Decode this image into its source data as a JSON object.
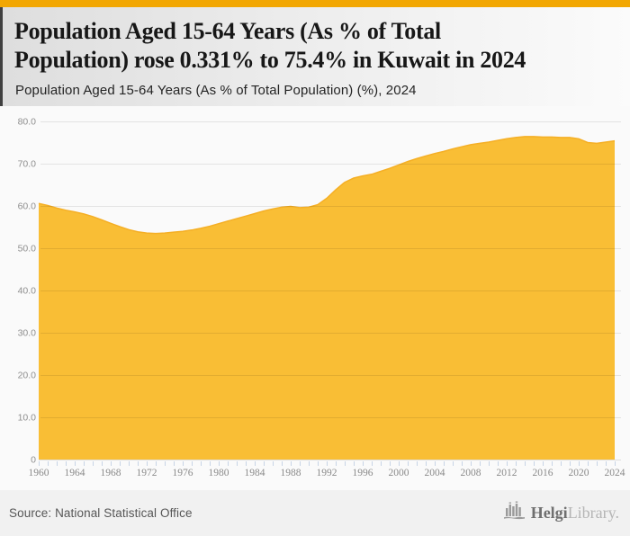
{
  "accent_color": "#F2A702",
  "header": {
    "title_lines": {
      "0": "Population Aged 15-64 Years (As % of Total",
      "1": "Population) rose 0.331% to 75.4% in Kuwait in 2024"
    },
    "subtitle": "Population Aged 15-64 Years (As % of Total Population) (%), 2024"
  },
  "chart_data": {
    "type": "area",
    "title": "Population Aged 15-64 Years (As % of Total Population) rose 0.331% to 75.4% in Kuwait in 2024",
    "subtitle": "Population Aged 15-64 Years (As % of Total Population) (%), 2024",
    "series_name": "Population Aged 15-64 Years (As % of Total Population)",
    "unit": "%",
    "country": "Kuwait",
    "latest_year": 2024,
    "latest_value": 75.4,
    "change_pct": 0.331,
    "ylim": [
      0,
      80
    ],
    "grid": true,
    "legend": "none",
    "area_color": "#F9BE35",
    "line_color": "#F5AF25",
    "tick_color": "#C8D4E6",
    "label_color": "#8a8a8a",
    "y_tick_labels": [
      "80.0",
      "70.0",
      "60.0",
      "50.0",
      "40.0",
      "30.0",
      "20.0",
      "10.0",
      "0"
    ],
    "x_tick_labels": [
      "1960",
      "1964",
      "1968",
      "1972",
      "1976",
      "1980",
      "1984",
      "1988",
      "1992",
      "1996",
      "2000",
      "2004",
      "2008",
      "2012",
      "2016",
      "2020",
      "2024"
    ],
    "x": [
      1960,
      1961,
      1962,
      1963,
      1964,
      1965,
      1966,
      1967,
      1968,
      1969,
      1970,
      1971,
      1972,
      1973,
      1974,
      1975,
      1976,
      1977,
      1978,
      1979,
      1980,
      1981,
      1982,
      1983,
      1984,
      1985,
      1986,
      1987,
      1988,
      1989,
      1990,
      1991,
      1992,
      1993,
      1994,
      1995,
      1996,
      1997,
      1998,
      1999,
      2000,
      2001,
      2002,
      2003,
      2004,
      2005,
      2006,
      2007,
      2008,
      2009,
      2010,
      2011,
      2012,
      2013,
      2014,
      2015,
      2016,
      2017,
      2018,
      2019,
      2020,
      2021,
      2022,
      2023,
      2024
    ],
    "values": [
      60.6,
      60.1,
      59.5,
      59.0,
      58.6,
      58.1,
      57.5,
      56.7,
      55.9,
      55.1,
      54.4,
      53.9,
      53.6,
      53.5,
      53.6,
      53.8,
      54.0,
      54.3,
      54.7,
      55.2,
      55.8,
      56.4,
      57.0,
      57.6,
      58.2,
      58.8,
      59.3,
      59.7,
      59.9,
      59.6,
      59.7,
      60.3,
      61.8,
      63.8,
      65.6,
      66.6,
      67.1,
      67.5,
      68.2,
      68.9,
      69.7,
      70.5,
      71.2,
      71.8,
      72.4,
      72.9,
      73.5,
      74.0,
      74.5,
      74.8,
      75.1,
      75.5,
      75.9,
      76.2,
      76.4,
      76.4,
      76.3,
      76.3,
      76.2,
      76.2,
      75.9,
      75.0,
      74.8,
      75.1,
      75.4
    ]
  },
  "footer": {
    "source": "Source: National Statistical Office",
    "logo": {
      "part1": "Helgi",
      "part2": "Library."
    }
  }
}
